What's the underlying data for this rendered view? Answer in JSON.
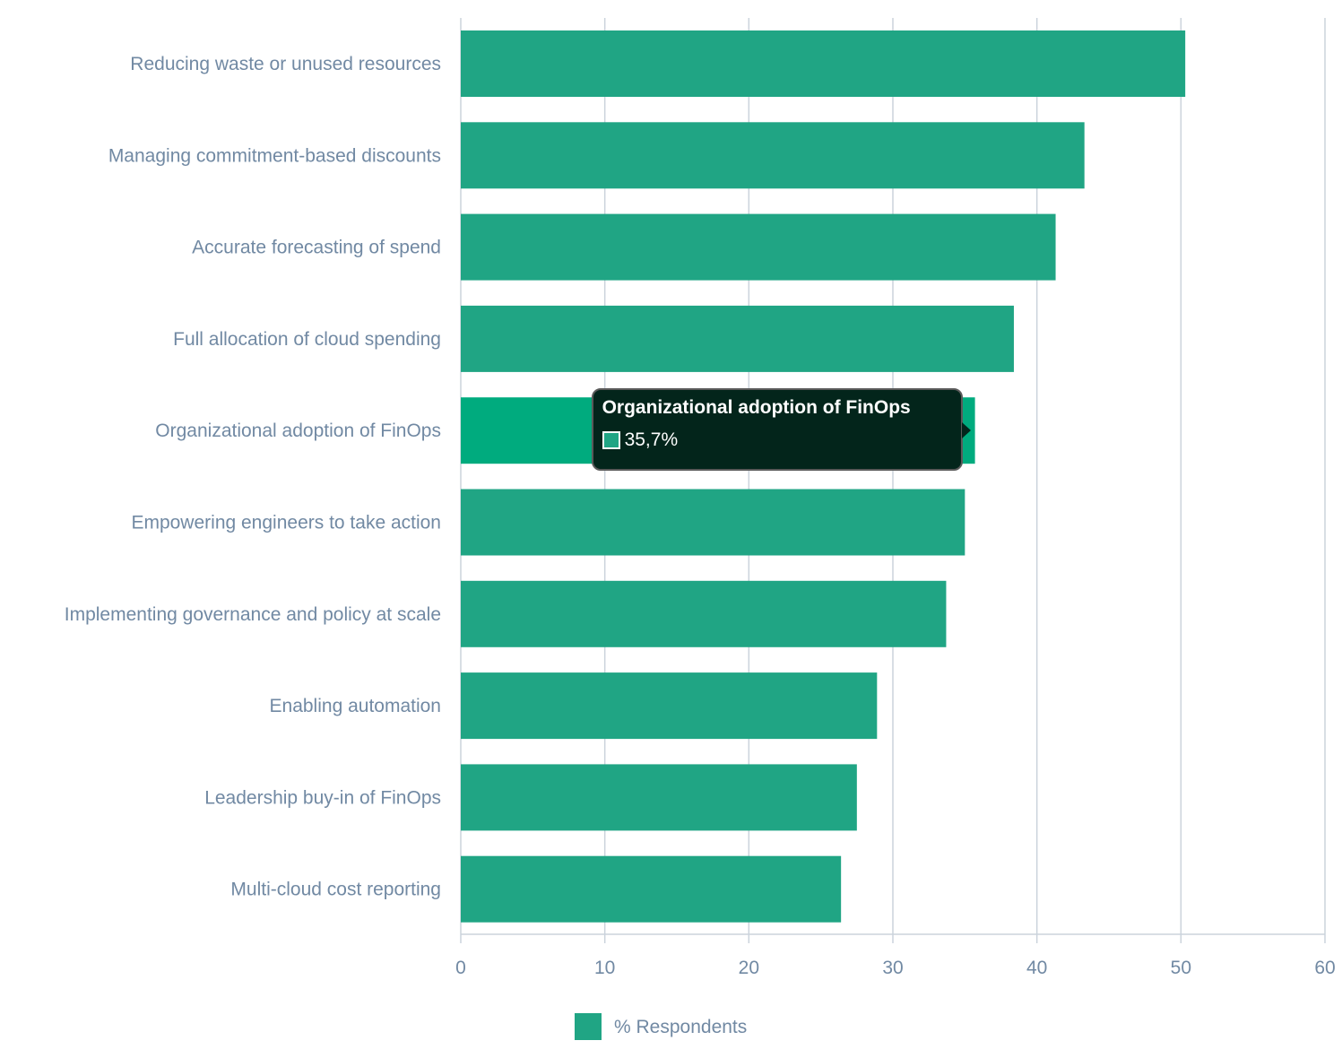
{
  "chart_data": {
    "type": "bar",
    "orientation": "horizontal",
    "categories": [
      "Reducing waste or unused resources",
      "Managing commitment-based discounts",
      "Accurate forecasting of spend",
      "Full allocation of cloud spending",
      "Organizational adoption of FinOps",
      "Empowering engineers to take action",
      "Implementing governance and policy at scale",
      "Enabling automation",
      "Leadership buy-in of FinOps",
      "Multi-cloud cost reporting"
    ],
    "series": [
      {
        "name": "% Respondents",
        "values": [
          50.3,
          43.3,
          41.3,
          38.4,
          35.7,
          35.0,
          33.7,
          28.9,
          27.5,
          26.4
        ]
      }
    ],
    "xlim": [
      0,
      60
    ],
    "xticks": [
      "0",
      "10",
      "20",
      "30",
      "40",
      "50",
      "60"
    ],
    "grid": true,
    "legend_position": "bottom",
    "bar_color": "#20a584",
    "highlight_color": "#00ab7e",
    "highlight_index": 4
  },
  "tooltip": {
    "title": "Organizational adoption of FinOps",
    "value": "35,7%"
  }
}
